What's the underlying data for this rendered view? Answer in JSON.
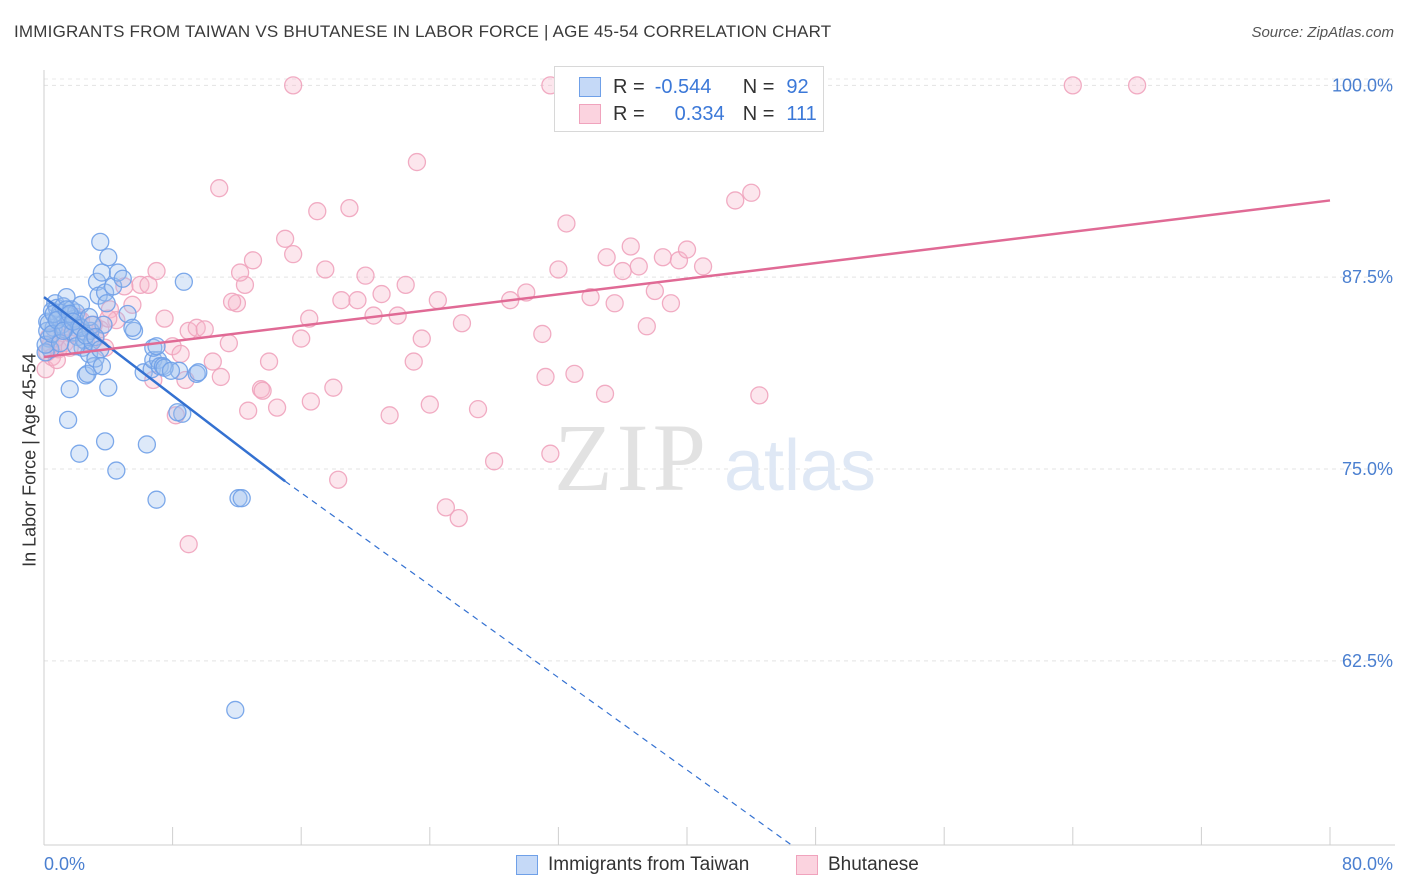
{
  "title": "IMMIGRANTS FROM TAIWAN VS BHUTANESE IN LABOR FORCE | AGE 45-54 CORRELATION CHART",
  "source": "Source: ZipAtlas.com",
  "watermark": {
    "zip": "ZIP",
    "atlas": "atlas"
  },
  "legend": {
    "rows": [
      {
        "r_label": "R =",
        "r_value": "-0.544",
        "n_label": "N =",
        "n_value": "92"
      },
      {
        "r_label": "R =",
        "r_value": "0.334",
        "n_label": "N =",
        "n_value": "111"
      }
    ]
  },
  "colors": {
    "blue": "#6fa0e8",
    "blue_line": "#3471d1",
    "pink": "#f0a3bd",
    "pink_line": "#e06a95",
    "tick_label": "#4a7fd0"
  },
  "chart_data": {
    "type": "scatter",
    "title": "IMMIGRANTS FROM TAIWAN VS BHUTANESE IN LABOR FORCE | AGE 45-54 CORRELATION CHART",
    "xlabel": "",
    "ylabel": "In Labor Force | Age 45-54",
    "xlim": [
      0,
      80
    ],
    "ylim": [
      50.5,
      101
    ],
    "x_tick_labels": [
      "0.0%",
      "80.0%"
    ],
    "y_ticks": [
      {
        "value": 100,
        "label": "100.0%"
      },
      {
        "value": 87.5,
        "label": "87.5%"
      },
      {
        "value": 75,
        "label": "75.0%"
      },
      {
        "value": 62.5,
        "label": "62.5%"
      }
    ],
    "grid": true,
    "legend_position": "top-center",
    "series": [
      {
        "name": "Immigrants from Taiwan",
        "color": "blue",
        "trend": {
          "x0": 0.0,
          "y0": 86.2,
          "x1": 15.0,
          "y1": 74.2,
          "dash_to_x": 46.5,
          "dash_to_y": 50.5
        },
        "points": [
          [
            0.2,
            84.6
          ],
          [
            0.3,
            83.5
          ],
          [
            0.4,
            82.8
          ],
          [
            0.5,
            85.3
          ],
          [
            0.6,
            84.2
          ],
          [
            0.7,
            85.8
          ],
          [
            0.8,
            85.5
          ],
          [
            0.9,
            84.9
          ],
          [
            1.0,
            85.2
          ],
          [
            1.1,
            84.4
          ],
          [
            1.2,
            85.6
          ],
          [
            1.3,
            84.1
          ],
          [
            1.4,
            86.2
          ],
          [
            1.5,
            85.0
          ],
          [
            1.6,
            84.7
          ],
          [
            1.7,
            85.4
          ],
          [
            1.8,
            83.9
          ],
          [
            1.9,
            84.8
          ],
          [
            2.0,
            85.2
          ],
          [
            2.1,
            83.6
          ],
          [
            2.2,
            84.3
          ],
          [
            2.3,
            85.7
          ],
          [
            2.4,
            82.9
          ],
          [
            2.5,
            83.4
          ],
          [
            2.6,
            81.1
          ],
          [
            2.7,
            81.2
          ],
          [
            2.8,
            82.5
          ],
          [
            2.9,
            84.0
          ],
          [
            3.0,
            83.3
          ],
          [
            3.1,
            81.7
          ],
          [
            3.2,
            82.2
          ],
          [
            3.3,
            87.2
          ],
          [
            3.4,
            86.3
          ],
          [
            3.5,
            89.8
          ],
          [
            3.6,
            87.8
          ],
          [
            3.7,
            84.4
          ],
          [
            3.8,
            86.5
          ],
          [
            3.9,
            85.8
          ],
          [
            4.0,
            88.8
          ],
          [
            4.3,
            86.9
          ],
          [
            4.6,
            87.8
          ],
          [
            4.9,
            87.4
          ],
          [
            1.5,
            78.2
          ],
          [
            1.6,
            80.2
          ],
          [
            2.2,
            76.0
          ],
          [
            3.8,
            76.8
          ],
          [
            4.5,
            74.9
          ],
          [
            4.0,
            80.3
          ],
          [
            5.2,
            85.1
          ],
          [
            5.6,
            84.0
          ],
          [
            6.2,
            81.3
          ],
          [
            6.4,
            76.6
          ],
          [
            6.7,
            81.5
          ],
          [
            6.8,
            82.1
          ],
          [
            7.0,
            73.0
          ],
          [
            7.1,
            82.1
          ],
          [
            7.2,
            81.7
          ],
          [
            7.4,
            81.7
          ],
          [
            8.4,
            81.4
          ],
          [
            8.6,
            78.6
          ],
          [
            8.3,
            78.7
          ],
          [
            8.7,
            87.2
          ],
          [
            9.5,
            81.2
          ],
          [
            9.6,
            81.3
          ],
          [
            12.1,
            73.1
          ],
          [
            12.3,
            73.1
          ],
          [
            11.9,
            59.3
          ],
          [
            0.1,
            82.6
          ],
          [
            0.1,
            83.1
          ],
          [
            0.2,
            84.0
          ],
          [
            0.3,
            84.5
          ],
          [
            0.5,
            83.8
          ],
          [
            0.6,
            85.1
          ],
          [
            0.8,
            84.7
          ],
          [
            1.0,
            83.2
          ],
          [
            1.2,
            84.0
          ],
          [
            1.4,
            85.4
          ],
          [
            1.6,
            85.1
          ],
          [
            1.8,
            84.6
          ],
          [
            2.0,
            83.0
          ],
          [
            2.3,
            84.2
          ],
          [
            2.6,
            83.7
          ],
          [
            2.8,
            84.9
          ],
          [
            3.0,
            84.4
          ],
          [
            3.2,
            83.6
          ],
          [
            3.5,
            82.8
          ],
          [
            3.6,
            81.7
          ],
          [
            5.5,
            84.2
          ],
          [
            6.8,
            82.9
          ],
          [
            7.0,
            83.0
          ],
          [
            7.5,
            81.6
          ],
          [
            7.9,
            81.4
          ]
        ]
      },
      {
        "name": "Bhutanese",
        "color": "pink",
        "trend": {
          "x0": 0.0,
          "y0": 82.3,
          "x1": 80.0,
          "y1": 92.5
        },
        "points": [
          [
            0.1,
            81.5
          ],
          [
            0.2,
            82.6
          ],
          [
            0.4,
            83.1
          ],
          [
            0.5,
            82.3
          ],
          [
            0.7,
            83.5
          ],
          [
            0.9,
            82.8
          ],
          [
            1.1,
            84.1
          ],
          [
            1.3,
            83.2
          ],
          [
            1.5,
            84.5
          ],
          [
            1.7,
            83.8
          ],
          [
            2.0,
            84.2
          ],
          [
            2.3,
            84.7
          ],
          [
            2.6,
            83.3
          ],
          [
            2.9,
            84.0
          ],
          [
            3.2,
            83.5
          ],
          [
            3.5,
            84.1
          ],
          [
            3.8,
            82.9
          ],
          [
            4.1,
            85.4
          ],
          [
            4.5,
            84.7
          ],
          [
            5.0,
            86.9
          ],
          [
            5.5,
            85.7
          ],
          [
            6.0,
            87.0
          ],
          [
            6.5,
            87.0
          ],
          [
            7.0,
            87.9
          ],
          [
            7.5,
            84.8
          ],
          [
            8.0,
            83.0
          ],
          [
            8.5,
            82.5
          ],
          [
            9.0,
            84.0
          ],
          [
            9.5,
            84.2
          ],
          [
            10.0,
            84.1
          ],
          [
            10.5,
            82.0
          ],
          [
            11.0,
            81.0
          ],
          [
            11.5,
            83.2
          ],
          [
            12.0,
            85.8
          ],
          [
            12.5,
            87.0
          ],
          [
            13.0,
            88.6
          ],
          [
            13.5,
            80.2
          ],
          [
            14.0,
            82.0
          ],
          [
            14.5,
            79.0
          ],
          [
            15.0,
            90.0
          ],
          [
            15.5,
            89.0
          ],
          [
            16.0,
            83.5
          ],
          [
            16.5,
            84.8
          ],
          [
            17.0,
            91.8
          ],
          [
            17.5,
            88.0
          ],
          [
            18.0,
            80.3
          ],
          [
            18.5,
            86.0
          ],
          [
            19.0,
            92.0
          ],
          [
            19.5,
            86.0
          ],
          [
            20.0,
            87.6
          ],
          [
            20.5,
            85.0
          ],
          [
            21.0,
            86.4
          ],
          [
            21.5,
            78.5
          ],
          [
            22.0,
            85.0
          ],
          [
            22.5,
            87.0
          ],
          [
            23.0,
            82.0
          ],
          [
            23.5,
            83.5
          ],
          [
            24.0,
            79.2
          ],
          [
            24.5,
            86.0
          ],
          [
            25.0,
            72.5
          ],
          [
            26.0,
            84.5
          ],
          [
            27.0,
            78.9
          ],
          [
            28.0,
            75.5
          ],
          [
            29.0,
            86.0
          ],
          [
            30.0,
            86.5
          ],
          [
            31.0,
            83.8
          ],
          [
            31.5,
            76.0
          ],
          [
            32.0,
            88.0
          ],
          [
            32.5,
            91.0
          ],
          [
            33.0,
            81.2
          ],
          [
            34.0,
            86.2
          ],
          [
            35.0,
            88.8
          ],
          [
            35.5,
            85.8
          ],
          [
            36.0,
            87.9
          ],
          [
            36.5,
            89.5
          ],
          [
            37.0,
            88.2
          ],
          [
            37.5,
            84.3
          ],
          [
            38.0,
            86.6
          ],
          [
            38.5,
            88.8
          ],
          [
            39.0,
            85.8
          ],
          [
            39.5,
            88.6
          ],
          [
            40.0,
            89.3
          ],
          [
            41.0,
            88.2
          ],
          [
            43.0,
            92.5
          ],
          [
            44.0,
            93.0
          ],
          [
            44.5,
            79.8
          ],
          [
            15.5,
            100.0
          ],
          [
            31.5,
            100.0
          ],
          [
            64.0,
            100.0
          ],
          [
            68.0,
            100.0
          ],
          [
            8.2,
            78.5
          ],
          [
            9.0,
            70.1
          ],
          [
            10.9,
            93.3
          ],
          [
            11.7,
            85.9
          ],
          [
            12.2,
            87.8
          ],
          [
            13.6,
            80.1
          ],
          [
            16.6,
            79.4
          ],
          [
            18.3,
            74.3
          ],
          [
            23.2,
            95.0
          ],
          [
            25.8,
            71.8
          ],
          [
            31.2,
            81.0
          ],
          [
            34.9,
            79.9
          ],
          [
            0.3,
            83.6
          ],
          [
            0.8,
            82.1
          ],
          [
            1.6,
            82.9
          ],
          [
            2.1,
            84.9
          ],
          [
            3.1,
            84.4
          ],
          [
            4.0,
            84.8
          ],
          [
            6.8,
            80.8
          ],
          [
            8.8,
            80.8
          ],
          [
            12.7,
            78.8
          ]
        ]
      }
    ]
  }
}
